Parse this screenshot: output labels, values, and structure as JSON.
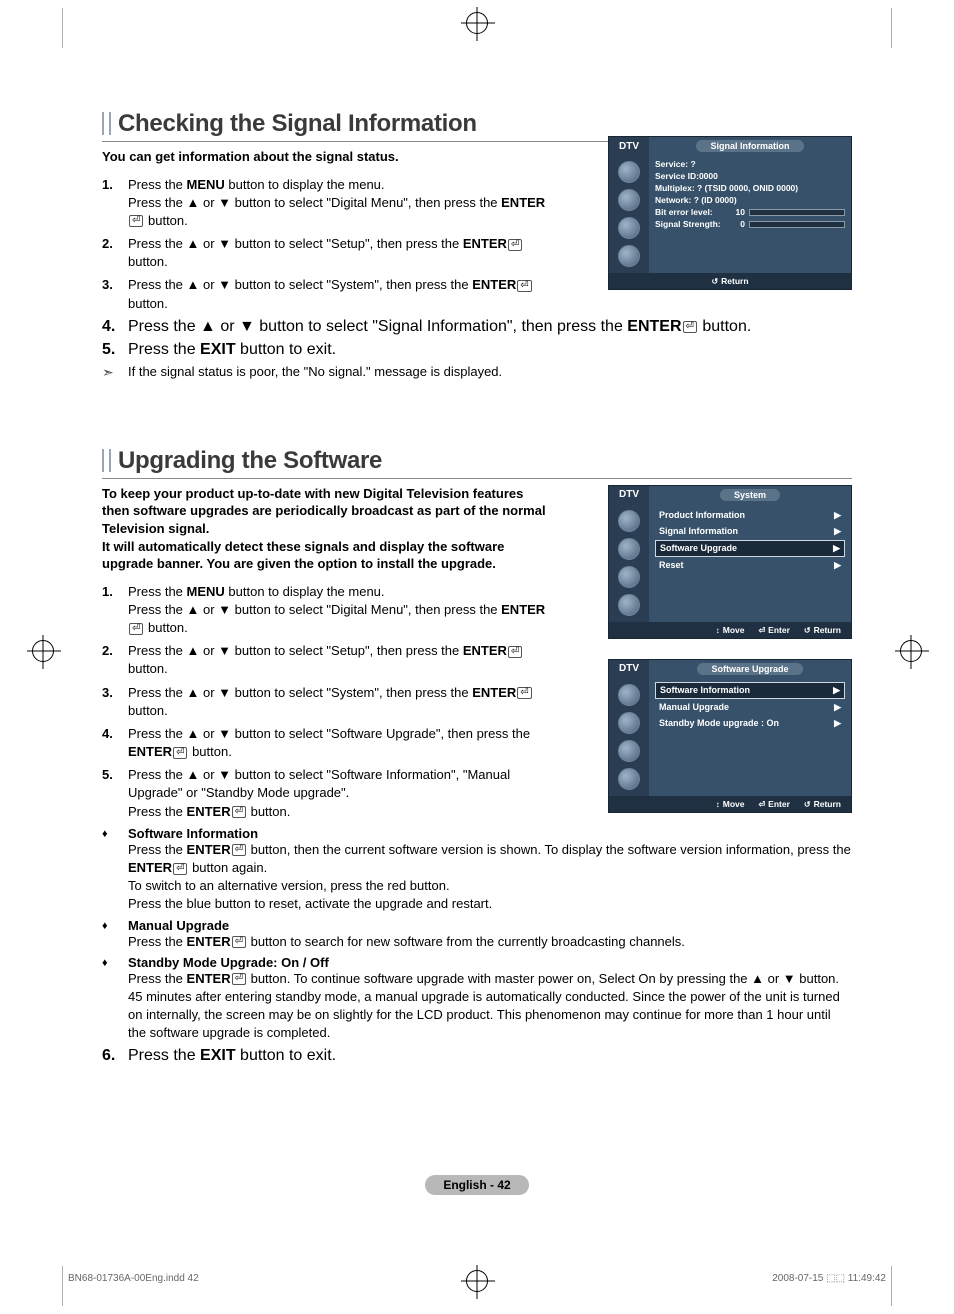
{
  "page": {
    "badge": "English - 42",
    "footer_left": "BN68-01736A-00Eng.indd   42",
    "footer_right": "2008-07-15   ⬚⬚ 11:49:42"
  },
  "sec1": {
    "title": "Checking the Signal Information",
    "intro": "You can get information about the signal status.",
    "steps": [
      {
        "n": "1.",
        "pre": "Press the ",
        "b1": "MENU",
        "mid": " button to display the menu.\nPress the ▲ or ▼ button to select \"Digital Menu\", then press the ",
        "b2": "ENTER",
        "post": " button."
      },
      {
        "n": "2.",
        "pre": "Press the ▲ or ▼ button to select \"Setup\", then press the ",
        "b1": "ENTER",
        "post": " button."
      },
      {
        "n": "3.",
        "pre": "Press the ▲ or ▼ button to select \"System\", then press the ",
        "b1": "ENTER",
        "post": " button."
      },
      {
        "n": "4.",
        "pre": "Press the ▲ or ▼ button to select \"Signal Information\", then press the ",
        "b1": "ENTER",
        "post": " button."
      },
      {
        "n": "5.",
        "pre": "Press the ",
        "b1": "EXIT",
        "post": " button to exit."
      }
    ],
    "note": "If the signal status is poor, the \"No signal.\" message is displayed.",
    "osd": {
      "dtv": "DTV",
      "title": "Signal Information",
      "lines": [
        "Service: ?",
        "Service ID:0000",
        "Multiplex: ? (TSID 0000, ONID 0000)",
        "Network: ? (ID 0000)"
      ],
      "bars": [
        {
          "label": "Bit error level:",
          "val": "10",
          "pct": 10
        },
        {
          "label": "Signal Strength:",
          "val": "0",
          "pct": 0
        }
      ],
      "footer": [
        {
          "sym": "↺",
          "label": "Return"
        }
      ]
    }
  },
  "sec2": {
    "title": "Upgrading the Software",
    "intro": "To keep your product up-to-date with new Digital Television features then software upgrades are periodically broadcast as part of the normal Television signal.\nIt will automatically detect these signals and display the software upgrade banner. You are given the option to install the upgrade.",
    "steps": [
      {
        "n": "1.",
        "pre": "Press the ",
        "b1": "MENU",
        "mid": " button to display the menu.\nPress the ▲ or ▼ button to select \"Digital Menu\", then press the ",
        "b2": "ENTER",
        "post": " button."
      },
      {
        "n": "2.",
        "pre": "Press the ▲ or ▼ button to select \"Setup\", then press the ",
        "b1": "ENTER",
        "post": " button."
      },
      {
        "n": "3.",
        "pre": "Press the ▲ or ▼ button to select \"System\", then press the ",
        "b1": "ENTER",
        "post": " button."
      },
      {
        "n": "4.",
        "pre": "Press the ▲ or ▼ button to select \"Software Upgrade\", then press the ",
        "b1": "ENTER",
        "post": " button."
      },
      {
        "n": "5.",
        "pre": "Press the ▲ or ▼ button to select \"Software Information\", \"Manual Upgrade\" or \"Standby Mode upgrade\".\nPress the ",
        "b1": "ENTER",
        "post": " button."
      }
    ],
    "subs": [
      {
        "head": "Software Information",
        "body": "Press the ENTER⏎ button, then the current software version is shown. To display the software version information, press the ENTER⏎ button again.\nTo switch to an alternative version, press the red button.\nPress the blue button to reset, activate the upgrade and restart."
      },
      {
        "head": "Manual Upgrade",
        "body": "Press the ENTER⏎ button to search for new software from the currently broadcasting channels."
      },
      {
        "head": "Standby Mode Upgrade: On / Off",
        "body": "Press the ENTER⏎ button. To continue software upgrade with master power on, Select On by pressing the ▲ or ▼ button. 45 minutes after entering standby mode, a manual upgrade is automatically conducted. Since the power of the unit is turned on internally, the screen may be on slightly for the LCD product. This phenomenon may continue for more than 1 hour until the software upgrade is completed."
      }
    ],
    "step6": {
      "n": "6.",
      "pre": "Press the ",
      "b1": "EXIT",
      "post": " button to exit."
    },
    "osd1": {
      "dtv": "DTV",
      "title": "System",
      "rows": [
        {
          "label": "Product Information",
          "hl": false
        },
        {
          "label": "Signal Information",
          "hl": false
        },
        {
          "label": "Software Upgrade",
          "hl": true
        },
        {
          "label": "Reset",
          "hl": false
        }
      ],
      "footer": [
        {
          "sym": "↕",
          "label": "Move"
        },
        {
          "sym": "⏎",
          "label": "Enter"
        },
        {
          "sym": "↺",
          "label": "Return"
        }
      ]
    },
    "osd2": {
      "dtv": "DTV",
      "title": "Software Upgrade",
      "rows": [
        {
          "label": "Software Information",
          "hl": true
        },
        {
          "label": "Manual Upgrade",
          "hl": false
        },
        {
          "label": "Standby Mode upgrade : On",
          "hl": false
        }
      ],
      "footer": [
        {
          "sym": "↕",
          "label": "Move"
        },
        {
          "sym": "⏎",
          "label": "Enter"
        },
        {
          "sym": "↺",
          "label": "Return"
        }
      ]
    }
  }
}
